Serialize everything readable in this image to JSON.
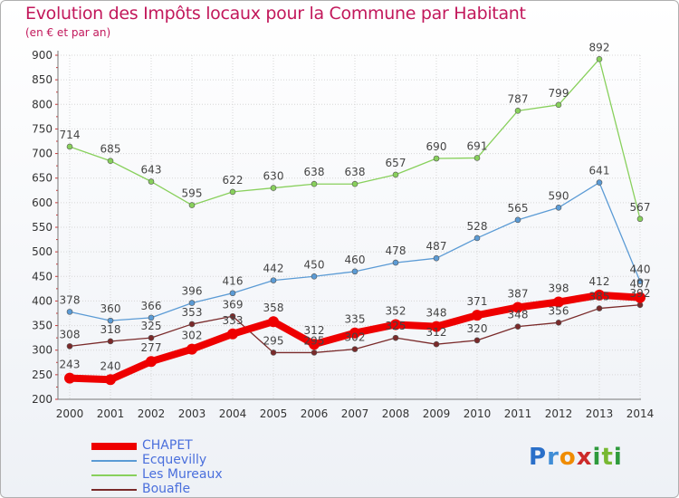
{
  "header": {
    "title": "Evolution des Impôts locaux pour la Commune par Habitant",
    "subtitle": "(en € et par an)"
  },
  "logo": {
    "text": "Proxiti",
    "letters": [
      "P",
      "r",
      "o",
      "x",
      "i",
      "t",
      "i"
    ]
  },
  "chart_data": {
    "type": "line",
    "x": [
      "2000",
      "2001",
      "2002",
      "2003",
      "2004",
      "2005",
      "2006",
      "2007",
      "2008",
      "2009",
      "2010",
      "2011",
      "2012",
      "2013",
      "2014"
    ],
    "ylim": [
      200,
      900
    ],
    "yticks": [
      200,
      250,
      300,
      350,
      400,
      450,
      500,
      550,
      600,
      650,
      700,
      750,
      800,
      850,
      900
    ],
    "grid": true,
    "legend_position": "bottom-left",
    "series": [
      {
        "name": "Les Mureaux",
        "color": "#88d05c",
        "emphasis": false,
        "values": [
          714,
          685,
          643,
          595,
          622,
          630,
          638,
          638,
          657,
          690,
          691,
          787,
          799,
          892,
          567
        ]
      },
      {
        "name": "Ecquevilly",
        "color": "#5b9bd5",
        "emphasis": false,
        "values": [
          378,
          360,
          366,
          396,
          416,
          442,
          450,
          460,
          478,
          487,
          528,
          565,
          590,
          641,
          440
        ]
      },
      {
        "name": "Bouafle",
        "color": "#7a2a2a",
        "emphasis": false,
        "values": [
          308,
          318,
          325,
          353,
          369,
          295,
          295,
          302,
          325,
          312,
          320,
          348,
          356,
          385,
          392
        ]
      },
      {
        "name": "CHAPET",
        "color": "#ee0000",
        "emphasis": true,
        "values": [
          243,
          240,
          277,
          302,
          333,
          358,
          312,
          335,
          352,
          348,
          371,
          387,
          398,
          412,
          407
        ]
      }
    ],
    "legend_order": [
      "CHAPET",
      "Ecquevilly",
      "Les Mureaux",
      "Bouafle"
    ]
  }
}
